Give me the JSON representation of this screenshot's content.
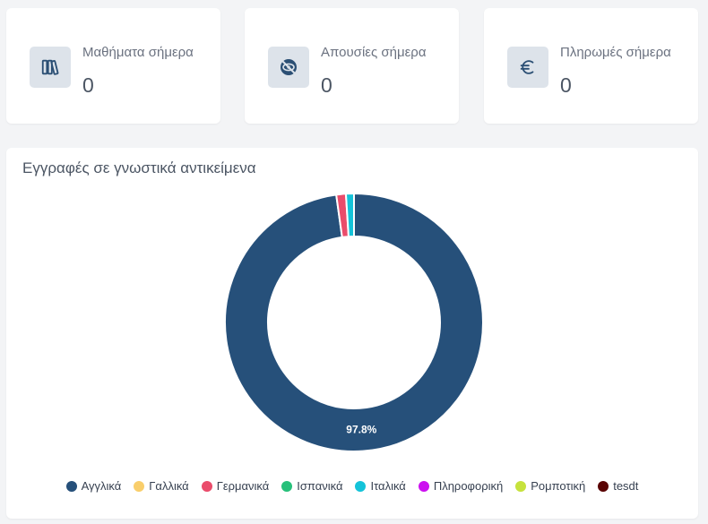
{
  "stats": [
    {
      "label": "Μαθήματα σήμερα",
      "value": "0",
      "icon": "books-icon"
    },
    {
      "label": "Απουσίες σήμερα",
      "value": "0",
      "icon": "eye-slash-icon"
    },
    {
      "label": "Πληρωμές σήμερα",
      "value": "0",
      "icon": "euro-icon"
    }
  ],
  "colors": {
    "icon": "#2b4f74",
    "icon_bg": "#dde3ea"
  },
  "chart_data": {
    "type": "pie",
    "title": "Εγγραφές σε γνωστικά αντικείμενα",
    "data_label": "97.8%",
    "legend_position": "bottom",
    "categories": [
      "Αγγλικά",
      "Γαλλικά",
      "Γερμανικά",
      "Ισπανικά",
      "Ιταλικά",
      "Πληροφορική",
      "Ρομποτική",
      "tesdt"
    ],
    "values": [
      97.8,
      0,
      1.2,
      0,
      1.0,
      0,
      0,
      0
    ],
    "colors": [
      "#26507a",
      "#f9ce6b",
      "#ea4c6b",
      "#27c07a",
      "#14c3d9",
      "#cc10f0",
      "#c6e23c",
      "#5a0404"
    ]
  }
}
